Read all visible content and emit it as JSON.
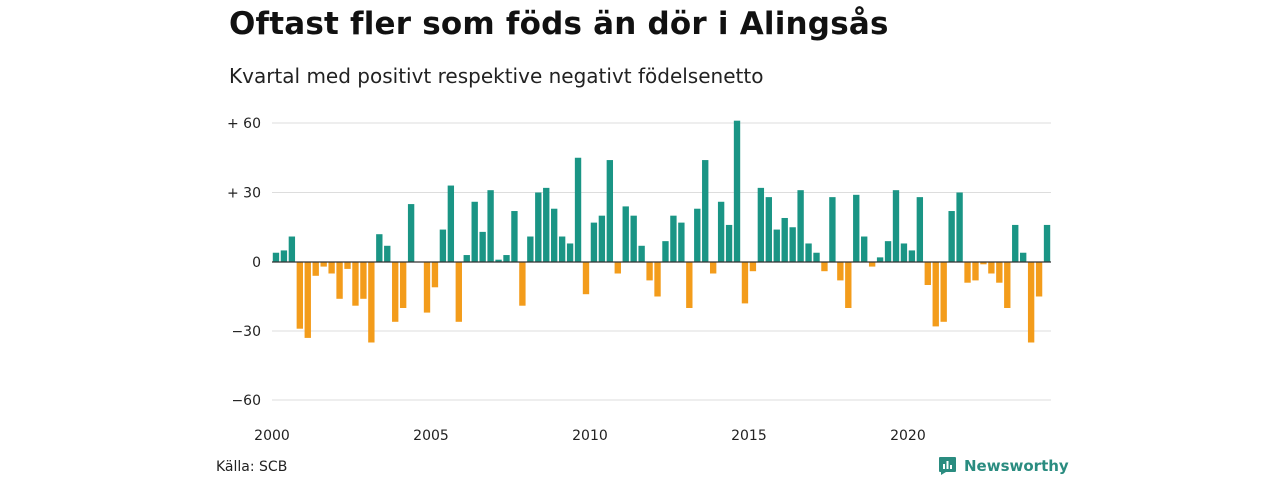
{
  "title": "Oftast fler som föds än dör i Alingsås",
  "subtitle": "Kvartal med positivt respektive negativt födelsenetto",
  "source": "Källa: SCB",
  "brand": "Newsworthy",
  "colors": {
    "positive": "#1a9585",
    "negative": "#f39c1b",
    "grid": "#dddddd",
    "zero": "#333333"
  },
  "chart_data": {
    "type": "bar",
    "title": "Oftast fler som föds än dör i Alingsås",
    "subtitle": "Kvartal med positivt respektive negativt födelsenetto",
    "ylim": [
      -60,
      60
    ],
    "y_ticks": [
      60,
      30,
      0,
      -30,
      -60
    ],
    "y_tick_labels": [
      "+ 60",
      "+ 30",
      "0",
      "−30",
      "−60"
    ],
    "x_tick_labels": [
      "2000",
      "2005",
      "2010",
      "2015",
      "2020"
    ],
    "grid": true,
    "start_period": "2000 Q1",
    "values": [
      4,
      5,
      11,
      -29,
      -33,
      -6,
      -2,
      -5,
      -16,
      -3,
      -19,
      -16,
      -35,
      12,
      7,
      -26,
      -20,
      25,
      0,
      -22,
      -11,
      14,
      33,
      -26,
      3,
      26,
      13,
      31,
      1,
      3,
      22,
      -19,
      11,
      30,
      32,
      23,
      11,
      8,
      45,
      -14,
      17,
      20,
      44,
      -5,
      24,
      20,
      7,
      -8,
      -15,
      9,
      20,
      17,
      -20,
      23,
      44,
      -5,
      26,
      16,
      61,
      -18,
      -4,
      32,
      28,
      14,
      19,
      15,
      31,
      8,
      4,
      -4,
      28,
      -8,
      -20,
      29,
      11,
      -2,
      2,
      9,
      31,
      8,
      5,
      28,
      -10,
      -28,
      -26,
      22,
      30,
      -9,
      -8,
      -1,
      -5,
      -9,
      -20,
      16,
      4,
      -35,
      -15,
      16
    ]
  }
}
